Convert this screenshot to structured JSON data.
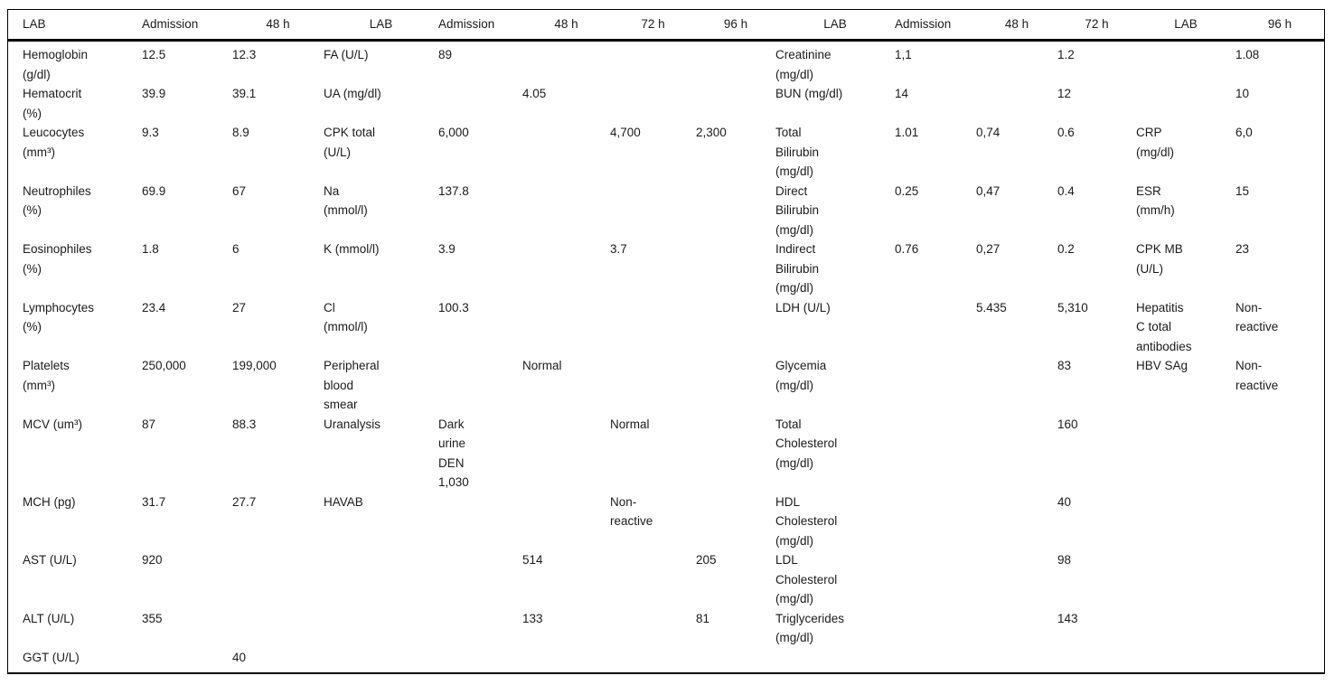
{
  "colors": {
    "background": "#ffffff",
    "text": "#1b1b1b",
    "rule": "#000000"
  },
  "table": {
    "headers": [
      "LAB",
      "Admission",
      "48 h",
      "LAB",
      "Admission",
      "48 h",
      "72 h",
      "96 h",
      "LAB",
      "Admission",
      "48 h",
      "72 h",
      "LAB",
      "96 h"
    ],
    "rows": [
      [
        "Hemoglobin\n(g/dl)",
        "12.5",
        "12.3",
        "FA (U/L)",
        "89",
        "",
        "",
        "",
        "Creatinine\n(mg/dl)",
        "1,1",
        "",
        "1.2",
        "",
        "1.08"
      ],
      [
        "Hematocrit\n(%)",
        "39.9",
        "39.1",
        "UA (mg/dl)",
        "",
        "4.05",
        "",
        "",
        "BUN (mg/dl)",
        "14",
        "",
        "12",
        "",
        "10"
      ],
      [
        "Leucocytes\n(mm³)",
        "9.3",
        "8.9",
        "CPK total\n(U/L)",
        "6,000",
        "",
        "4,700",
        "2,300",
        "Total\nBilirubin\n(mg/dl)",
        "1.01",
        "0,74",
        "0.6",
        "CRP\n(mg/dl)",
        "6,0"
      ],
      [
        "Neutrophiles\n(%)",
        "69.9",
        "67",
        "Na\n(mmol/l)",
        "137.8",
        "",
        "",
        "",
        "Direct\nBilirubin\n(mg/dl)",
        "0.25",
        "0,47",
        "0.4",
        "ESR\n(mm/h)",
        "15"
      ],
      [
        "Eosinophiles\n(%)",
        "1.8",
        "6",
        "K (mmol/l)",
        "3.9",
        "",
        "3.7",
        "",
        "Indirect\nBilirubin\n(mg/dl)",
        "0.76",
        "0,27",
        "0.2",
        "CPK MB\n(U/L)",
        "23"
      ],
      [
        "Lymphocytes\n(%)",
        "23.4",
        "27",
        "Cl\n(mmol/l)",
        "100.3",
        "",
        "",
        "",
        "LDH (U/L)",
        "",
        "5.435",
        "5,310",
        "Hepatitis\nC total\nantibodies",
        "Non-\nreactive"
      ],
      [
        "Platelets\n(mm³)",
        "250,000",
        "199,000",
        "Peripheral\nblood\nsmear",
        "",
        "Normal",
        "",
        "",
        "Glycemia\n(mg/dl)",
        "",
        "",
        "83",
        "HBV SAg",
        "Non-\nreactive"
      ],
      [
        "MCV (um³)",
        "87",
        "88.3",
        "Uranalysis",
        "Dark\nurine\nDEN\n1,030",
        "",
        "Normal",
        "",
        "Total\nCholesterol\n(mg/dl)",
        "",
        "",
        "160",
        "",
        ""
      ],
      [
        "MCH (pg)",
        "31.7",
        "27.7",
        "HAVAB",
        "",
        "",
        "Non-\nreactive",
        "",
        "HDL\nCholesterol\n(mg/dl)",
        "",
        "",
        "40",
        "",
        ""
      ],
      [
        "AST (U/L)",
        "920",
        "",
        "",
        "",
        "514",
        "",
        "205",
        "LDL\nCholesterol\n(mg/dl)",
        "",
        "",
        "98",
        "",
        ""
      ],
      [
        "ALT (U/L)",
        "355",
        "",
        "",
        "",
        "133",
        "",
        "81",
        "Triglycerides\n(mg/dl)",
        "",
        "",
        "143",
        "",
        ""
      ],
      [
        "GGT (U/L)",
        "",
        "40",
        "",
        "",
        "",
        "",
        "",
        "",
        "",
        "",
        "",
        "",
        ""
      ]
    ]
  }
}
